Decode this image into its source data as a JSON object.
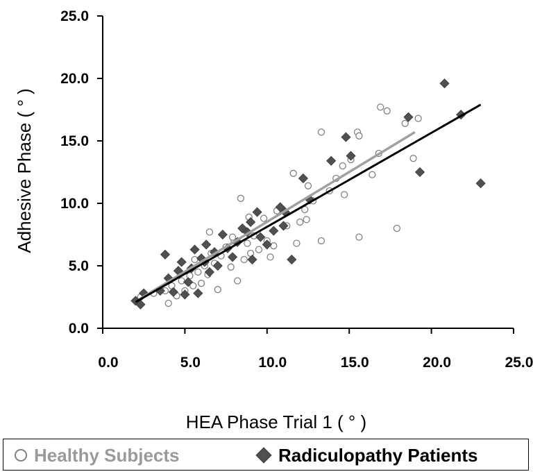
{
  "chart_data": {
    "type": "scatter",
    "xlabel": "HEA Phase Trial 1 ( ° )",
    "ylabel": "Adhesive Phase ( ° )",
    "xlim": [
      0,
      25
    ],
    "ylim": [
      0,
      25
    ],
    "x_ticks": [
      "0.0",
      "5.0",
      "10.0",
      "15.0",
      "20.0",
      "25.0"
    ],
    "y_ticks": [
      "0.0",
      "5.0",
      "10.0",
      "15.0",
      "20.0",
      "25.0"
    ],
    "legend_position": "bottom",
    "series": [
      {
        "name": "Healthy Subjects",
        "marker": "open-circle",
        "color": "#808080",
        "trendline": {
          "x": [
            2.2,
            19.0
          ],
          "y": [
            2.3,
            15.7
          ],
          "color": "#a0a0a0"
        },
        "points": [
          [
            2.3,
            2.5
          ],
          [
            3.1,
            2.8
          ],
          [
            3.8,
            3.0
          ],
          [
            4.0,
            2.0
          ],
          [
            4.2,
            3.4
          ],
          [
            4.5,
            2.6
          ],
          [
            4.8,
            3.8
          ],
          [
            5.0,
            3.0
          ],
          [
            5.3,
            4.2
          ],
          [
            5.5,
            3.4
          ],
          [
            5.6,
            5.5
          ],
          [
            5.8,
            4.5
          ],
          [
            6.0,
            3.6
          ],
          [
            6.2,
            5.0
          ],
          [
            6.4,
            4.3
          ],
          [
            6.6,
            6.0
          ],
          [
            6.8,
            5.2
          ],
          [
            7.0,
            3.1
          ],
          [
            7.2,
            5.8
          ],
          [
            7.5,
            6.5
          ],
          [
            7.8,
            4.9
          ],
          [
            8.0,
            7.0
          ],
          [
            8.2,
            3.8
          ],
          [
            8.4,
            10.4
          ],
          [
            8.6,
            5.5
          ],
          [
            8.8,
            6.8
          ],
          [
            9.0,
            6.0
          ],
          [
            9.2,
            7.4
          ],
          [
            9.5,
            6.3
          ],
          [
            9.8,
            8.8
          ],
          [
            10.0,
            7.0
          ],
          [
            10.2,
            5.7
          ],
          [
            10.4,
            6.6
          ],
          [
            10.8,
            9.6
          ],
          [
            11.2,
            8.2
          ],
          [
            11.6,
            12.4
          ],
          [
            11.8,
            6.8
          ],
          [
            12.0,
            8.5
          ],
          [
            12.3,
            9.5
          ],
          [
            12.5,
            11.4
          ],
          [
            12.8,
            10.2
          ],
          [
            13.3,
            15.7
          ],
          [
            13.3,
            7.0
          ],
          [
            13.8,
            11.0
          ],
          [
            14.2,
            12.0
          ],
          [
            14.6,
            13.0
          ],
          [
            14.7,
            10.7
          ],
          [
            15.1,
            13.5
          ],
          [
            15.5,
            15.7
          ],
          [
            15.6,
            15.4
          ],
          [
            15.6,
            7.3
          ],
          [
            16.4,
            12.3
          ],
          [
            16.8,
            14.0
          ],
          [
            16.9,
            17.7
          ],
          [
            17.3,
            17.4
          ],
          [
            17.9,
            8.0
          ],
          [
            18.4,
            16.4
          ],
          [
            18.9,
            13.6
          ],
          [
            19.2,
            16.8
          ],
          [
            6.5,
            7.7
          ],
          [
            7.9,
            7.3
          ],
          [
            8.9,
            8.9
          ],
          [
            10.6,
            9.4
          ],
          [
            12.4,
            8.7
          ]
        ]
      },
      {
        "name": "Radiculopathy Patients",
        "marker": "filled-diamond",
        "color": "#505050",
        "trendline": {
          "x": [
            2.0,
            23.0
          ],
          "y": [
            2.1,
            17.9
          ],
          "color": "#000000"
        },
        "points": [
          [
            2.0,
            2.2
          ],
          [
            2.3,
            1.9
          ],
          [
            2.5,
            2.8
          ],
          [
            3.5,
            3.0
          ],
          [
            3.8,
            5.9
          ],
          [
            4.0,
            4.0
          ],
          [
            4.3,
            2.9
          ],
          [
            4.6,
            4.6
          ],
          [
            4.8,
            5.3
          ],
          [
            5.0,
            2.7
          ],
          [
            5.2,
            3.7
          ],
          [
            5.4,
            4.8
          ],
          [
            5.6,
            6.3
          ],
          [
            5.8,
            2.8
          ],
          [
            6.0,
            5.6
          ],
          [
            6.3,
            6.7
          ],
          [
            6.5,
            4.5
          ],
          [
            6.8,
            6.1
          ],
          [
            7.0,
            5.0
          ],
          [
            7.3,
            7.5
          ],
          [
            7.6,
            6.4
          ],
          [
            7.9,
            5.7
          ],
          [
            8.2,
            6.9
          ],
          [
            8.5,
            8.0
          ],
          [
            8.8,
            7.7
          ],
          [
            9.1,
            5.5
          ],
          [
            9.4,
            9.3
          ],
          [
            9.6,
            7.3
          ],
          [
            10.0,
            6.7
          ],
          [
            10.4,
            7.8
          ],
          [
            10.8,
            9.7
          ],
          [
            11.1,
            9.3
          ],
          [
            11.5,
            5.5
          ],
          [
            12.2,
            12.0
          ],
          [
            12.6,
            10.3
          ],
          [
            13.9,
            13.4
          ],
          [
            14.8,
            15.3
          ],
          [
            15.1,
            13.8
          ],
          [
            18.6,
            16.9
          ],
          [
            19.3,
            12.5
          ],
          [
            20.8,
            19.6
          ],
          [
            21.8,
            17.1
          ],
          [
            23.0,
            11.6
          ],
          [
            6.2,
            5.3
          ],
          [
            9.0,
            8.5
          ],
          [
            11.0,
            8.2
          ]
        ]
      }
    ]
  }
}
